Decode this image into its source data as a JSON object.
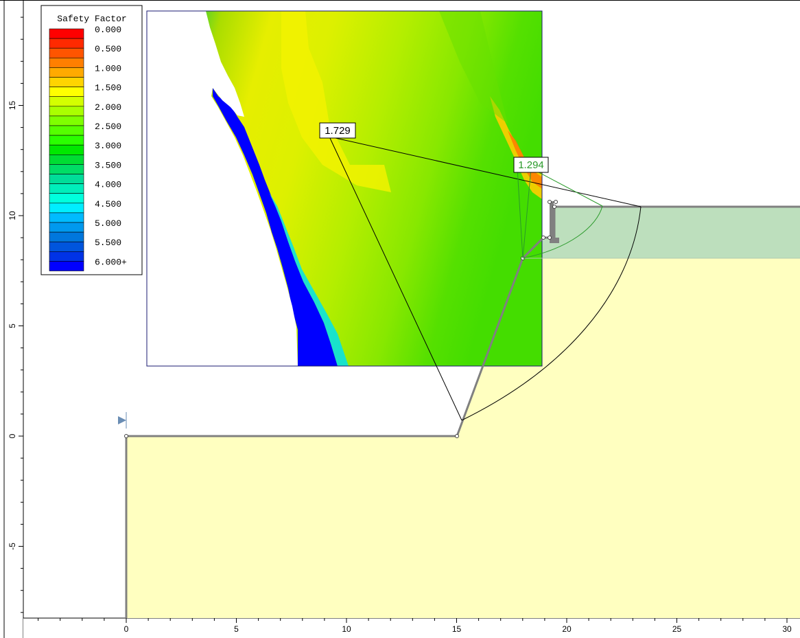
{
  "legend": {
    "title": "Safety Factor",
    "entries": [
      {
        "label": "0.000",
        "color": "#ff0000"
      },
      {
        "label": "",
        "color": "#ff2a00"
      },
      {
        "label": "0.500",
        "color": "#ff5500"
      },
      {
        "label": "",
        "color": "#ff7f00"
      },
      {
        "label": "1.000",
        "color": "#ffaa00"
      },
      {
        "label": "",
        "color": "#ffd400"
      },
      {
        "label": "1.500",
        "color": "#ffff00"
      },
      {
        "label": "",
        "color": "#d4ff00"
      },
      {
        "label": "2.000",
        "color": "#aaff00"
      },
      {
        "label": "",
        "color": "#7fff00"
      },
      {
        "label": "2.500",
        "color": "#55ff00"
      },
      {
        "label": "",
        "color": "#2aff00"
      },
      {
        "label": "3.000",
        "color": "#00e800"
      },
      {
        "label": "",
        "color": "#00dd33"
      },
      {
        "label": "3.500",
        "color": "#00dd66"
      },
      {
        "label": "",
        "color": "#00dd99"
      },
      {
        "label": "4.000",
        "color": "#00eebb"
      },
      {
        "label": "",
        "color": "#00ffdd"
      },
      {
        "label": "4.500",
        "color": "#00eeff"
      },
      {
        "label": "",
        "color": "#00bbff"
      },
      {
        "label": "5.000",
        "color": "#0099ee"
      },
      {
        "label": "",
        "color": "#0077dd"
      },
      {
        "label": "5.500",
        "color": "#0055dd"
      },
      {
        "label": "",
        "color": "#0033e6"
      },
      {
        "label": "6.000+",
        "color": "#0000ff"
      }
    ]
  },
  "results": {
    "global_min_fs": "1.729",
    "critical_fs": "1.294"
  },
  "axes": {
    "x_ticks": [
      "0",
      "5",
      "10",
      "15",
      "20",
      "25",
      "30"
    ],
    "y_ticks": [
      "15",
      "10",
      "5",
      "0",
      "-5"
    ]
  },
  "colors": {
    "soil_lower": "#ffffc0",
    "soil_upper": "#bddfbd",
    "boundary": "#808080",
    "surface_black": "#000000",
    "surface_green": "#2a9a2a"
  }
}
